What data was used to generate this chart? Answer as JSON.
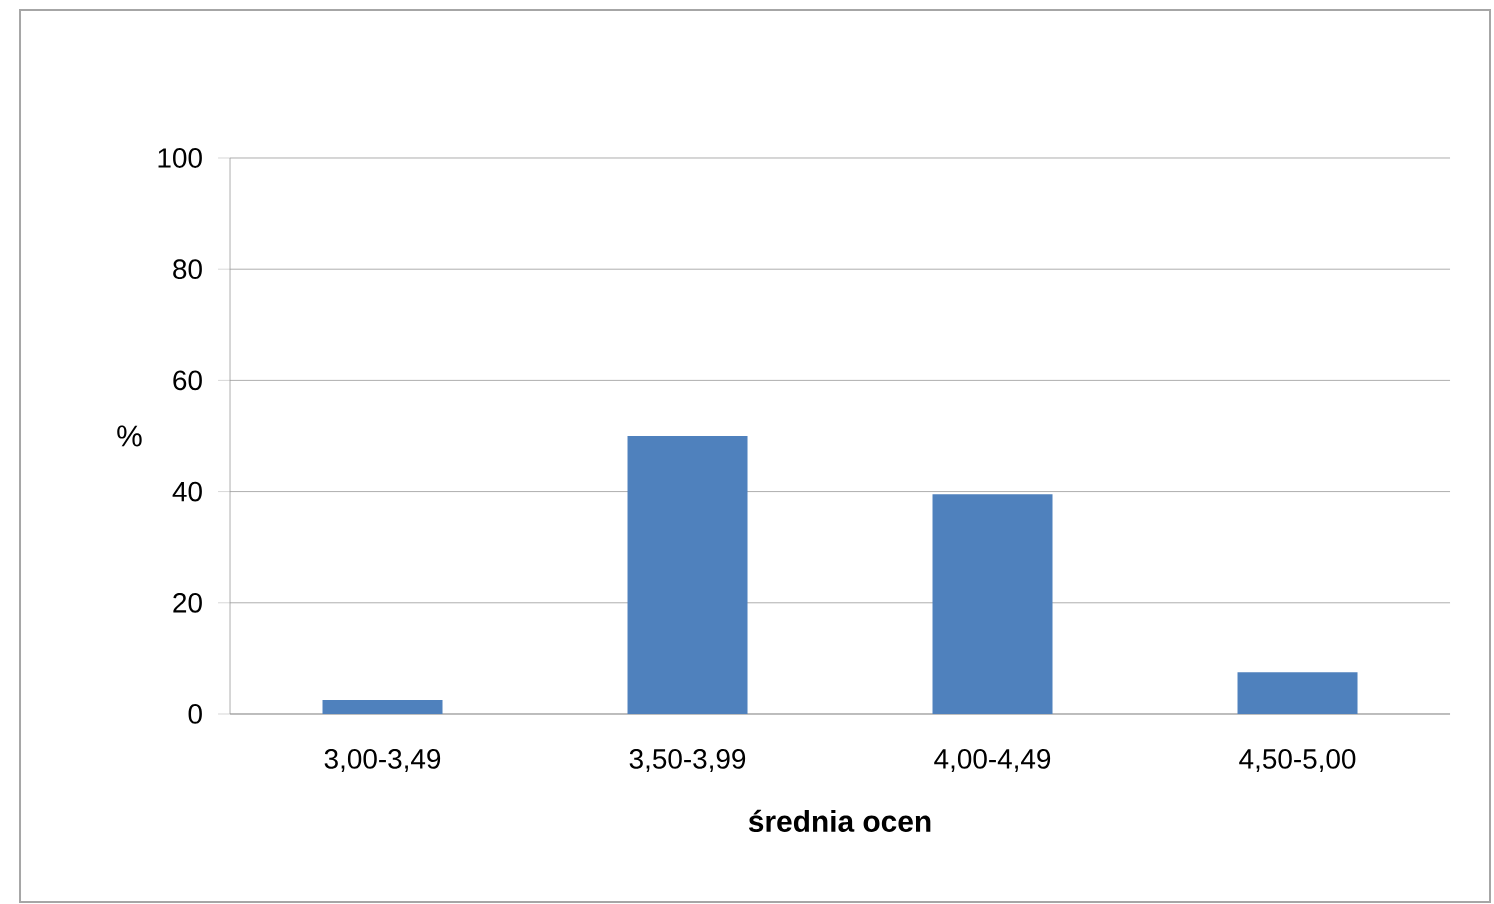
{
  "chart_data": {
    "type": "bar",
    "xlabel": "**średnia ocen**",
    "ylabel": "%",
    "categories": [
      "3,00-3,49",
      "3,50-3,99",
      "4,00-4,49",
      "4,50-5,00"
    ],
    "values": [
      2.5,
      50,
      39.5,
      7.5
    ],
    "color": "#4f81bd",
    "ylim": [
      0,
      100
    ],
    "yticks": [
      0,
      20,
      40,
      60,
      80,
      100
    ],
    "grid": "y"
  }
}
